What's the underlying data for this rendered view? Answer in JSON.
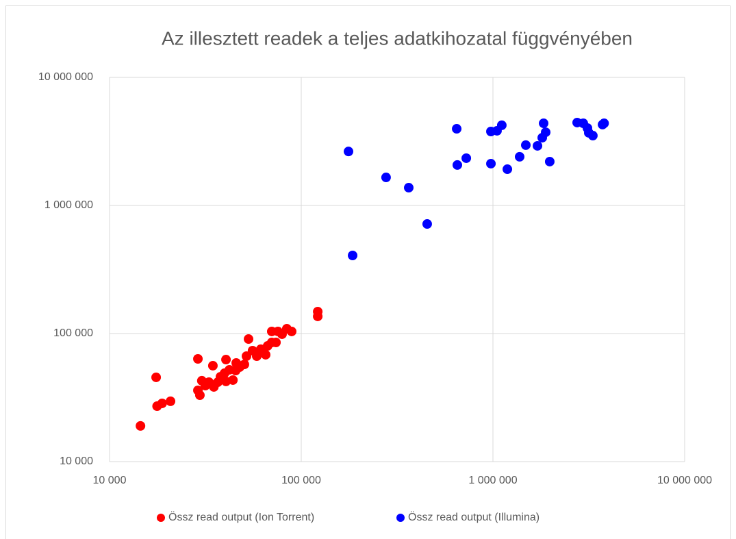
{
  "chart_data": {
    "type": "scatter",
    "title": "Az illesztett readek a teljes adatkihozatal függvényében",
    "xscale": "log",
    "yscale": "log",
    "grid": true,
    "legend": "bottom",
    "xlim": [
      10000,
      10000000
    ],
    "ylim": [
      10000,
      10000000
    ],
    "xticks": [
      {
        "value": 10000,
        "label": "10 000"
      },
      {
        "value": 100000,
        "label": "100 000"
      },
      {
        "value": 1000000,
        "label": "1 000 000"
      },
      {
        "value": 10000000,
        "label": "10 000 000"
      }
    ],
    "yticks": [
      {
        "value": 10000,
        "label": "10 000"
      },
      {
        "value": 100000,
        "label": "100 000"
      },
      {
        "value": 1000000,
        "label": "1 000 000"
      },
      {
        "value": 10000000,
        "label": "10 000 000"
      }
    ],
    "series": [
      {
        "name": "Össz read output (Ion Torrent)",
        "color": "#ff0000",
        "x": [
          14500,
          17500,
          17700,
          18800,
          20800,
          28900,
          28900,
          29600,
          30300,
          31600,
          33000,
          34600,
          35000,
          36700,
          37900,
          39800,
          40500,
          40500,
          42200,
          44000,
          45800,
          45500,
          47700,
          50500,
          51800,
          53100,
          55700,
          58600,
          61500,
          65200,
          66800,
          70200,
          70200,
          73800,
          75600,
          79400,
          84100,
          89100,
          121900,
          121900
        ],
        "values": [
          19000,
          45500,
          27100,
          28500,
          29600,
          63400,
          36000,
          33000,
          42800,
          39200,
          41700,
          56100,
          38300,
          41700,
          46000,
          49000,
          62600,
          42300,
          52100,
          43300,
          58900,
          51400,
          54700,
          57400,
          66600,
          90600,
          73500,
          66600,
          75400,
          68300,
          80100,
          85200,
          103800,
          85200,
          103800,
          98800,
          109000,
          103800,
          148300,
          136100
        ]
      },
      {
        "name": "Össz read output (Illumina)",
        "color": "#0000ff",
        "x": [
          176400,
          185300,
          277000,
          363700,
          453900,
          647000,
          652000,
          726000,
          976000,
          976000,
          1050000,
          1112000,
          1189000,
          1378000,
          1484000,
          1707000,
          1808000,
          1838000,
          1884000,
          1978000,
          2750000,
          2960000,
          3110000,
          3162000,
          3320000,
          3730000,
          3800000
        ],
        "values": [
          2640000,
          407000,
          1656000,
          1377000,
          717000,
          3970000,
          2070000,
          2340000,
          3780000,
          2120000,
          3830000,
          4230000,
          1920000,
          2400000,
          2960000,
          2920000,
          3380000,
          4380000,
          3730000,
          2200000,
          4440000,
          4380000,
          4020000,
          3690000,
          3510000,
          4280000,
          4380000
        ]
      }
    ]
  }
}
